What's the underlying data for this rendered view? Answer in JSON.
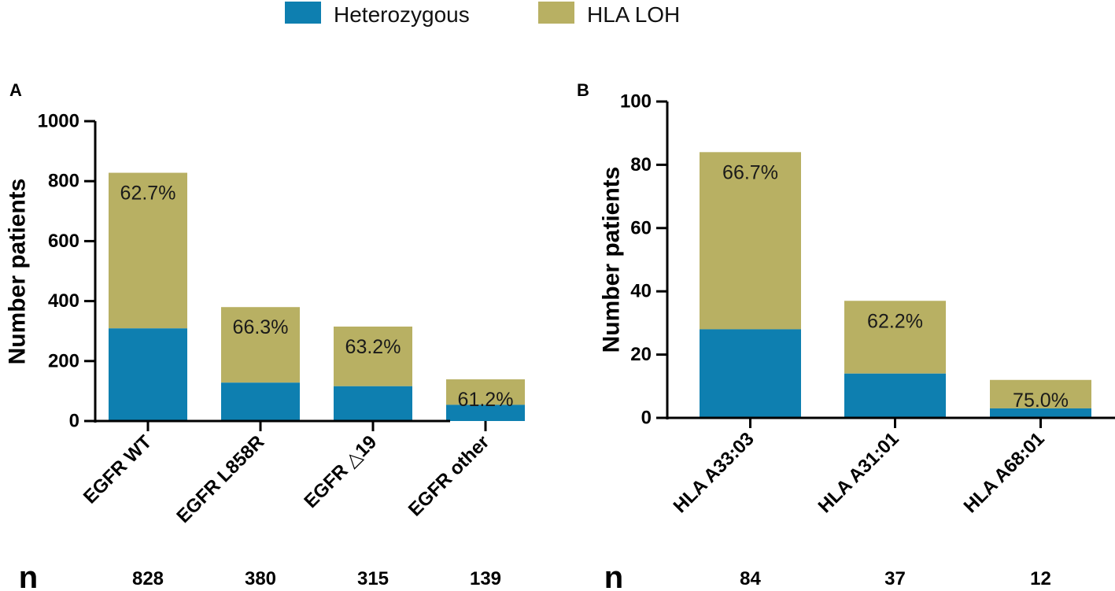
{
  "colors": {
    "heterozygous": "#0e7fb0",
    "loh": "#b8b063",
    "axis": "#000000"
  },
  "legend": [
    {
      "name": "Heterozygous",
      "color": "#0e7fb0"
    },
    {
      "name": "HLA LOH",
      "color": "#b8b063"
    }
  ],
  "n_label": "n",
  "chart_data": [
    {
      "panel": "A",
      "type": "bar",
      "stacked": true,
      "ylabel": "Number patients",
      "ylim": [
        0,
        1000
      ],
      "yticks": [
        0,
        200,
        400,
        600,
        800,
        1000
      ],
      "categories": [
        "EGFR WT",
        "EGFR L858R",
        "EGFR △19",
        "EGFR other"
      ],
      "series": [
        {
          "name": "Heterozygous",
          "values": [
            309,
            128,
            116,
            54
          ]
        },
        {
          "name": "HLA LOH",
          "values": [
            519,
            252,
            199,
            85
          ]
        }
      ],
      "labels": [
        "62.7%",
        "66.3%",
        "63.2%",
        "61.2%"
      ],
      "n": [
        "828",
        "380",
        "315",
        "139"
      ]
    },
    {
      "panel": "B",
      "type": "bar",
      "stacked": true,
      "ylabel": "Number patients",
      "ylim": [
        0,
        100
      ],
      "yticks": [
        0,
        20,
        40,
        60,
        80,
        100
      ],
      "categories": [
        "HLA A33:03",
        "HLA A31:01",
        "HLA A68:01"
      ],
      "series": [
        {
          "name": "Heterozygous",
          "values": [
            28,
            14,
            3
          ]
        },
        {
          "name": "HLA LOH",
          "values": [
            56,
            23,
            9
          ]
        }
      ],
      "labels": [
        "66.7%",
        "62.2%",
        "75.0%"
      ],
      "n": [
        "84",
        "37",
        "12"
      ]
    }
  ]
}
